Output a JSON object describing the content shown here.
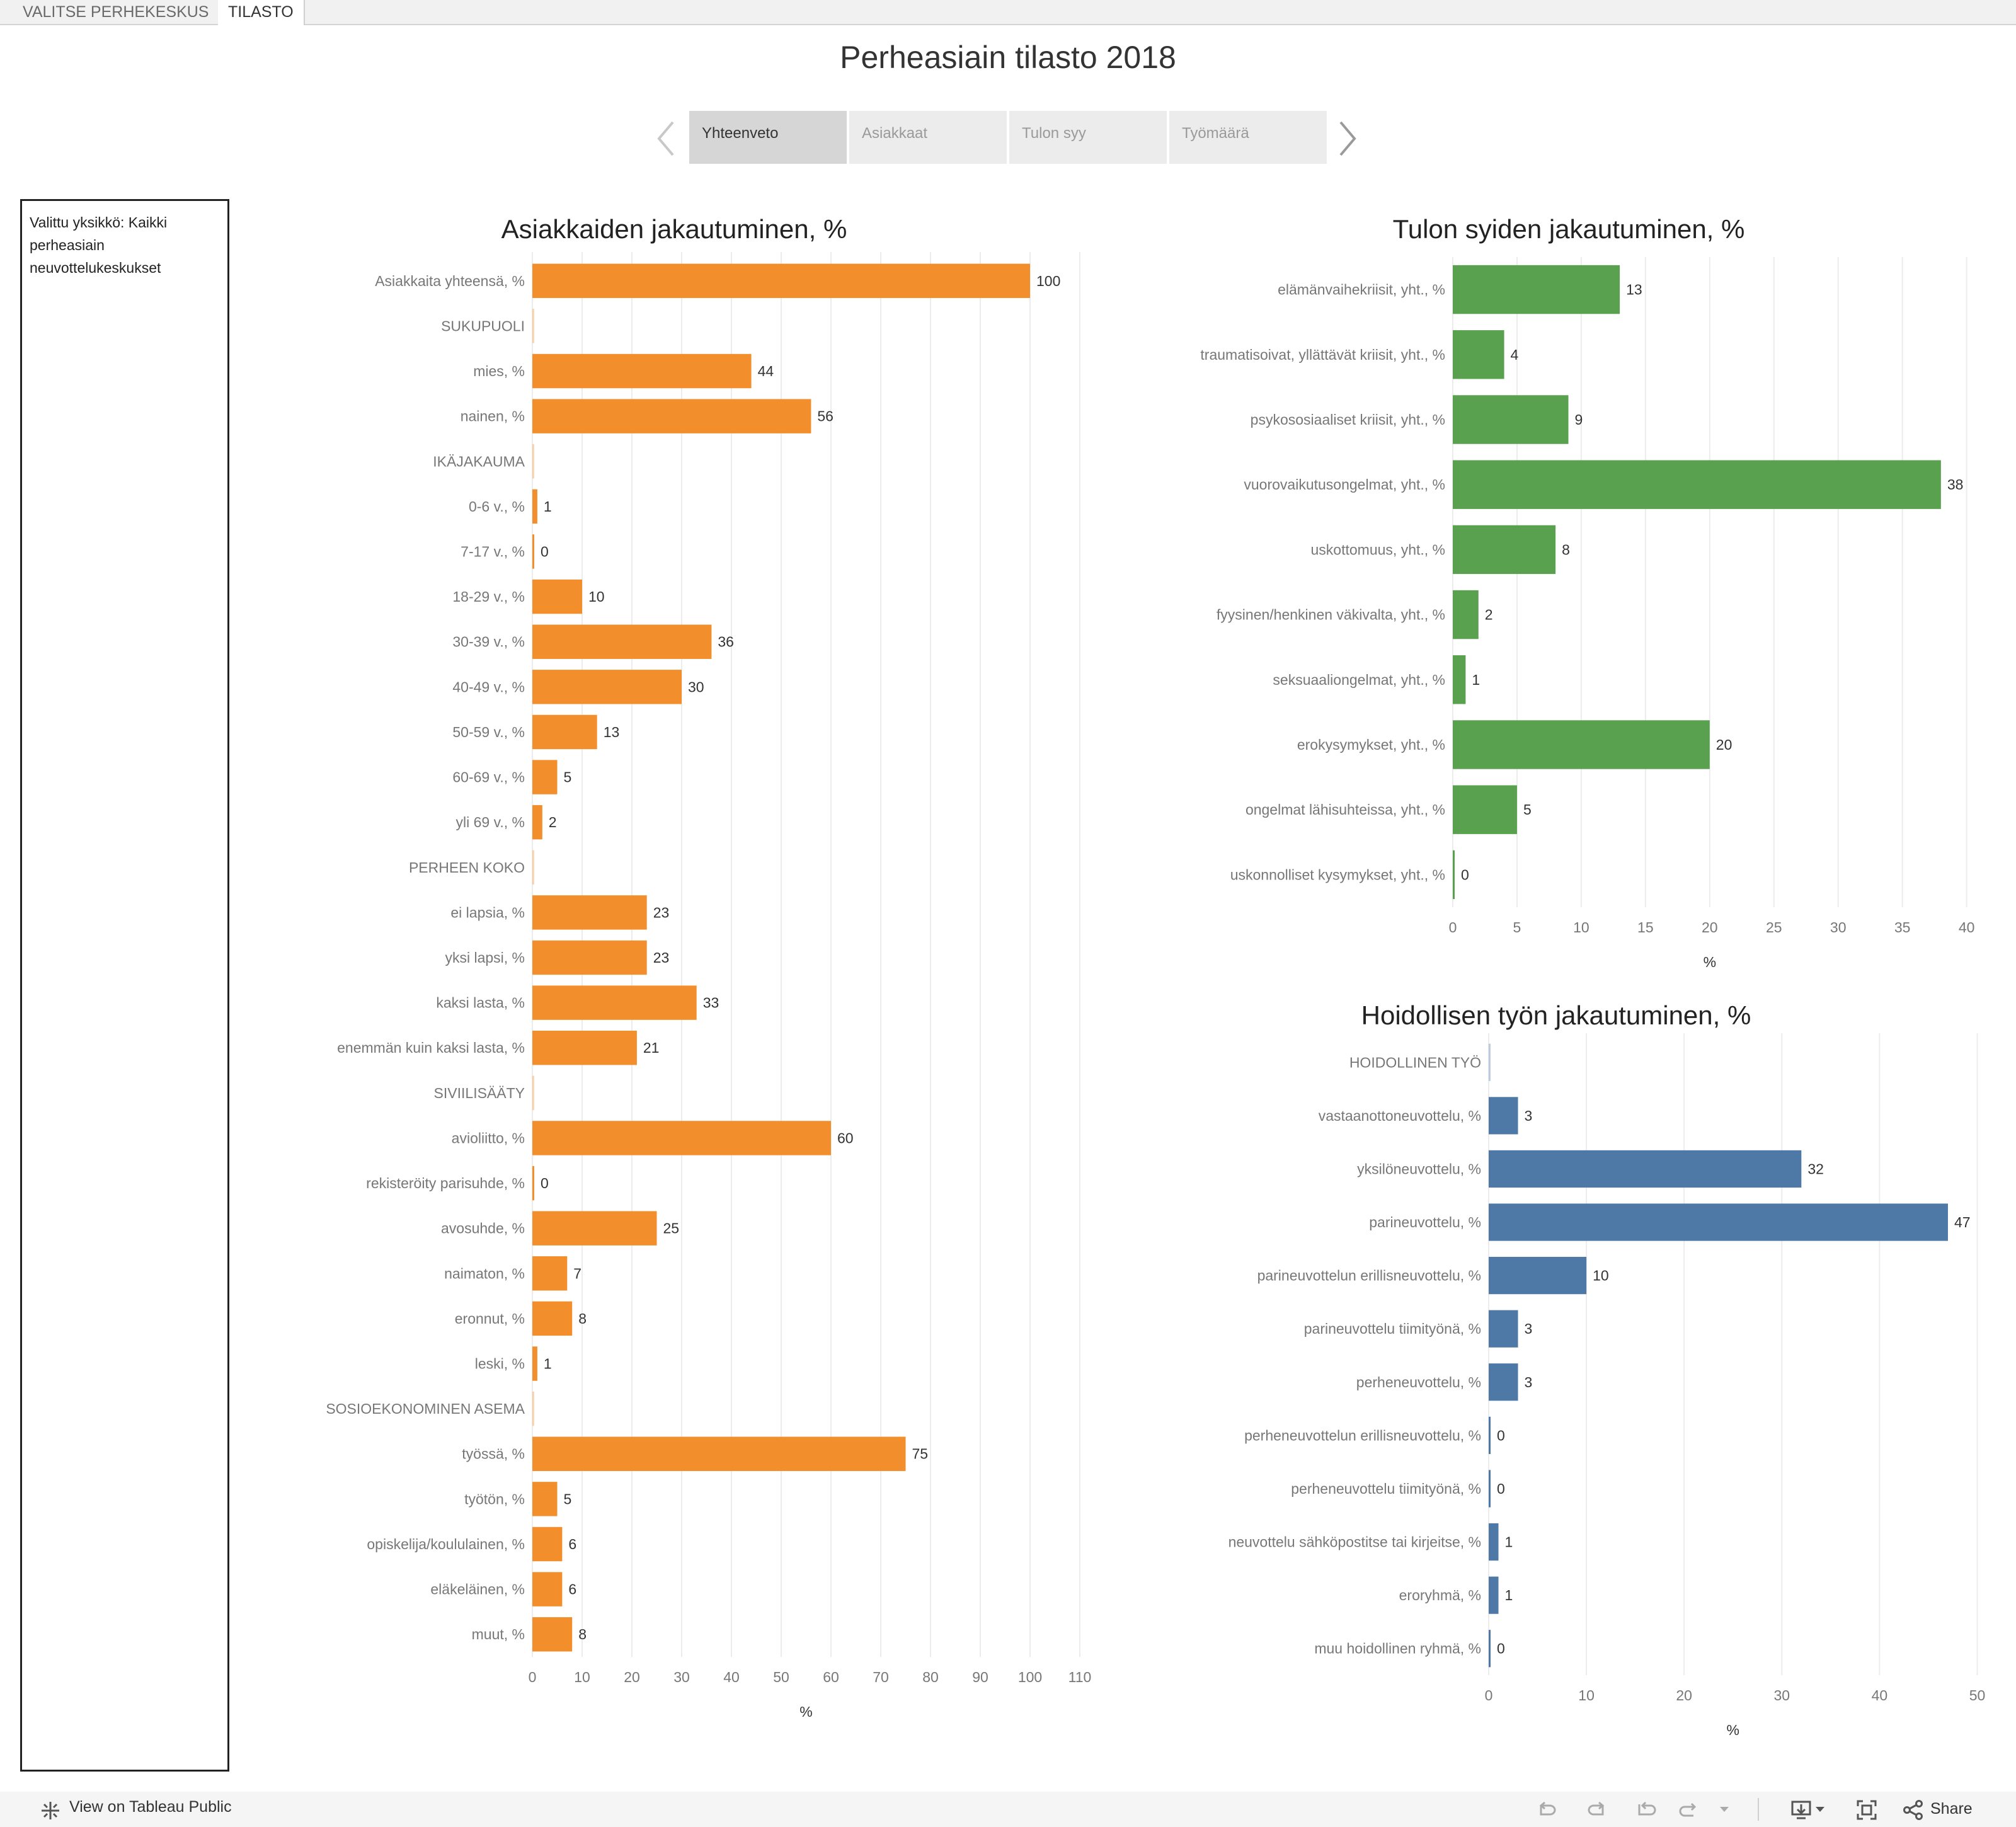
{
  "tabs": [
    {
      "label": "VALITSE PERHEKESKUS",
      "active": false
    },
    {
      "label": "TILASTO",
      "active": true
    }
  ],
  "page_title": "Perheasiain tilasto 2018",
  "nav_tabs": [
    {
      "label": "Yhteenveto",
      "active": true
    },
    {
      "label": "Asiakkaat",
      "active": false
    },
    {
      "label": "Tulon syy",
      "active": false
    },
    {
      "label": "Työmäärä",
      "active": false
    }
  ],
  "unit_text": "Valittu yksikkö: Kaikki perheasiain neuvottelukeskukset",
  "footer": {
    "view_link": "View on Tableau Public",
    "share_label": "Share",
    "icons": [
      "tableau-logo-icon",
      "undo-icon",
      "redo-icon",
      "revert-icon",
      "refresh-icon",
      "dropdown-arrow-icon",
      "download-icon",
      "fullscreen-icon",
      "share-icon"
    ]
  },
  "colors": {
    "orange": "#f28e2b",
    "green": "#59a14f",
    "blue": "#4e79a7",
    "grid": "#ececec",
    "axis_text": "#777777",
    "label_text": "#777777"
  },
  "chart_data": [
    {
      "type": "bar",
      "orientation": "horizontal",
      "title": "Asiakkaiden jakautuminen, %",
      "xlabel": "%",
      "xlim": [
        0,
        110
      ],
      "xticks": [
        0,
        10,
        20,
        30,
        40,
        50,
        60,
        70,
        80,
        90,
        100,
        110
      ],
      "color": "#f28e2b",
      "categories": [
        "Asiakkaita yhteensä, %",
        "SUKUPUOLI",
        "mies, %",
        "nainen, %",
        "IKÄJAKAUMA",
        "0-6 v., %",
        "7-17 v., %",
        "18-29 v., %",
        "30-39 v., %",
        "40-49 v., %",
        "50-59 v., %",
        "60-69 v., %",
        "yli 69 v., %",
        "PERHEEN KOKO",
        "ei lapsia, %",
        "yksi lapsi, %",
        "kaksi lasta, %",
        "enemmän kuin kaksi lasta, %",
        "SIVIILISÄÄTY",
        "avioliitto, %",
        "rekisteröity parisuhde, %",
        "avosuhde, %",
        "naimaton, %",
        "eronnut, %",
        "leski, %",
        "SOSIOEKONOMINEN ASEMA",
        "työssä, %",
        "työtön, %",
        "opiskelija/koululainen, %",
        "eläkeläinen, %",
        "muut, %"
      ],
      "values": [
        100,
        null,
        44,
        56,
        null,
        1,
        0,
        10,
        36,
        30,
        13,
        5,
        2,
        null,
        23,
        23,
        33,
        21,
        null,
        60,
        0,
        25,
        7,
        8,
        1,
        null,
        75,
        5,
        6,
        6,
        8
      ]
    },
    {
      "type": "bar",
      "orientation": "horizontal",
      "title": "Tulon syiden jakautuminen, %",
      "xlabel": "%",
      "xlim": [
        0,
        41
      ],
      "xticks": [
        0,
        5,
        10,
        15,
        20,
        25,
        30,
        35,
        40
      ],
      "color": "#59a14f",
      "categories": [
        "elämänvaihekriisit, yht., %",
        "traumatisoivat, yllättävät kriisit, yht., %",
        "psykososiaaliset kriisit, yht., %",
        "vuorovaikutusongelmat, yht., %",
        "uskottomuus, yht., %",
        "fyysinen/henkinen väkivalta, yht., %",
        "seksuaaliongelmat, yht., %",
        "erokysymykset, yht., %",
        "ongelmat lähisuhteissa, yht., %",
        "uskonnolliset kysymykset, yht., %"
      ],
      "values": [
        13,
        4,
        9,
        38,
        8,
        2,
        1,
        20,
        5,
        0
      ]
    },
    {
      "type": "bar",
      "orientation": "horizontal",
      "title": "Hoidollisen työn jakautuminen, %",
      "xlabel": "%",
      "xlim": [
        0,
        51
      ],
      "xticks": [
        0,
        10,
        20,
        30,
        40,
        50
      ],
      "color": "#4e79a7",
      "categories": [
        "HOIDOLLINEN TYÖ",
        "vastaanottoneuvottelu, %",
        "yksilöneuvottelu, %",
        "parineuvottelu, %",
        "parineuvottelun erillisneuvottelu, %",
        "parineuvottelu tiimityönä, %",
        "perheneuvottelu, %",
        "perheneuvottelun erillisneuvottelu, %",
        "perheneuvottelu tiimityönä, %",
        "neuvottelu sähköpostitse tai kirjeitse, %",
        "eroryhmä, %",
        "muu hoidollinen ryhmä, %"
      ],
      "values": [
        null,
        3,
        32,
        47,
        10,
        3,
        3,
        0,
        0,
        1,
        1,
        0
      ]
    }
  ]
}
